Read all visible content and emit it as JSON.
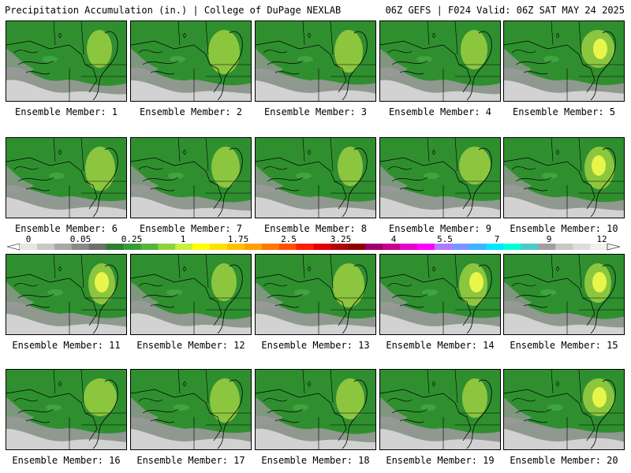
{
  "header": {
    "left": "Precipitation Accumulation (in.) | College of DuPage NEXLAB",
    "right": "06Z GEFS | F024 Valid: 06Z SAT MAY 24 2025"
  },
  "members": [
    {
      "label": "Ensemble Member: 1"
    },
    {
      "label": "Ensemble Member: 2"
    },
    {
      "label": "Ensemble Member: 3"
    },
    {
      "label": "Ensemble Member: 4"
    },
    {
      "label": "Ensemble Member: 5"
    },
    {
      "label": "Ensemble Member: 6"
    },
    {
      "label": "Ensemble Member: 7"
    },
    {
      "label": "Ensemble Member: 8"
    },
    {
      "label": "Ensemble Member: 9"
    },
    {
      "label": "Ensemble Member: 10"
    },
    {
      "label": "Ensemble Member: 11"
    },
    {
      "label": "Ensemble Member: 12"
    },
    {
      "label": "Ensemble Member: 13"
    },
    {
      "label": "Ensemble Member: 14"
    },
    {
      "label": "Ensemble Member: 15"
    },
    {
      "label": "Ensemble Member: 16"
    },
    {
      "label": "Ensemble Member: 17"
    },
    {
      "label": "Ensemble Member: 18"
    },
    {
      "label": "Ensemble Member: 19"
    },
    {
      "label": "Ensemble Member: 20"
    }
  ],
  "legend": {
    "tick_labels": [
      "0",
      "0.05",
      "0.25",
      "1",
      "1.75",
      "2.5",
      "3.25",
      "4",
      "5.5",
      "7",
      "9",
      "12"
    ],
    "colors": [
      "#e6e6e6",
      "#c8c8c8",
      "#a8a8a8",
      "#8a8a8a",
      "#6e6e6e",
      "#2e7d32",
      "#3a9a3a",
      "#55b43c",
      "#8fd23c",
      "#c8f03c",
      "#ffff00",
      "#ffe000",
      "#ffc000",
      "#ffa000",
      "#ff7800",
      "#ff5000",
      "#ff1e00",
      "#e00000",
      "#b40000",
      "#8c0000",
      "#a0006e",
      "#c8008c",
      "#e600c8",
      "#ff00ff",
      "#b478ff",
      "#7896ff",
      "#3cb4ff",
      "#00e6ff",
      "#00ffd2",
      "#50c8c8",
      "#a0a0a0",
      "#c8c8c8",
      "#dcdcdc",
      "#f0f0f0"
    ]
  },
  "colors": {
    "land_green": "#2f8f2f",
    "mid_green": "#3fa53f",
    "light_green": "#8cc63f",
    "yellow": "#e8f54a",
    "gray": "#9a9a9a",
    "light_gray": "#d2d2d2"
  }
}
